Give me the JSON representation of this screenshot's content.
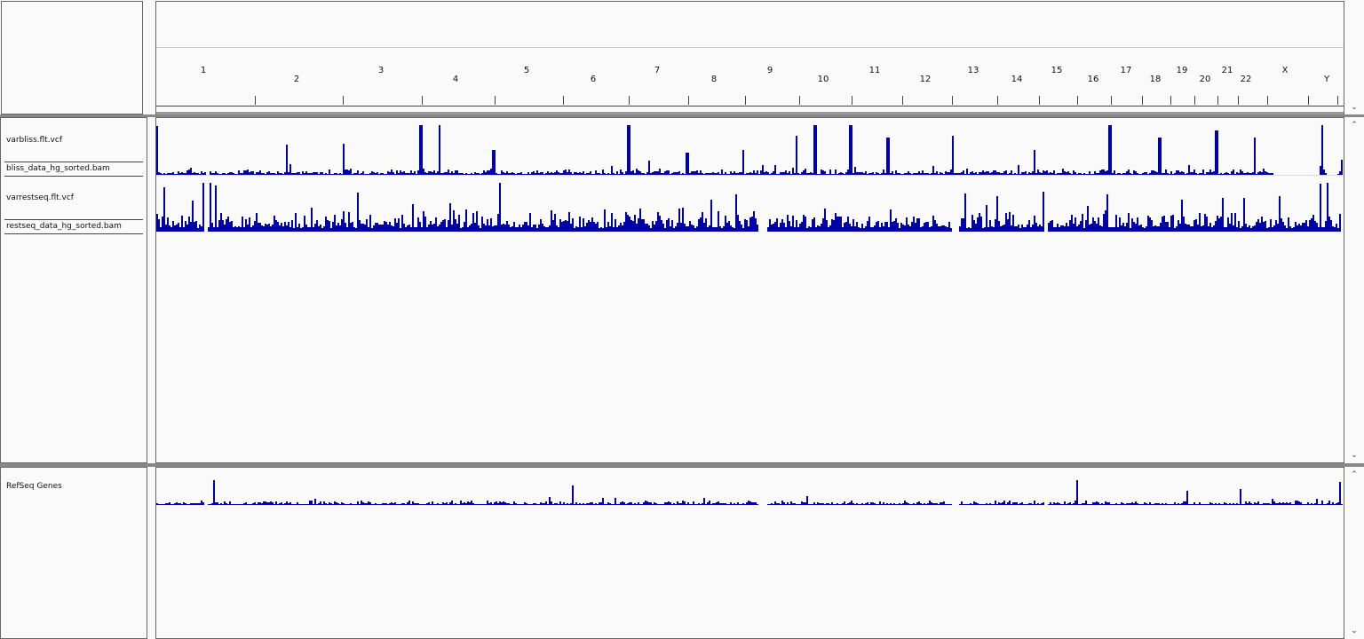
{
  "header": {
    "chromosomes": [
      {
        "name": "1",
        "pos": 229,
        "row": 0
      },
      {
        "name": "2",
        "pos": 334,
        "row": 1
      },
      {
        "name": "3",
        "pos": 429,
        "row": 0
      },
      {
        "name": "4",
        "pos": 513,
        "row": 1
      },
      {
        "name": "5",
        "pos": 593,
        "row": 0
      },
      {
        "name": "6",
        "pos": 668,
        "row": 1
      },
      {
        "name": "7",
        "pos": 740,
        "row": 0
      },
      {
        "name": "8",
        "pos": 804,
        "row": 1
      },
      {
        "name": "9",
        "pos": 867,
        "row": 0
      },
      {
        "name": "10",
        "pos": 927,
        "row": 1
      },
      {
        "name": "11",
        "pos": 985,
        "row": 0
      },
      {
        "name": "12",
        "pos": 1042,
        "row": 1
      },
      {
        "name": "13",
        "pos": 1096,
        "row": 0
      },
      {
        "name": "14",
        "pos": 1145,
        "row": 1
      },
      {
        "name": "15",
        "pos": 1190,
        "row": 0
      },
      {
        "name": "16",
        "pos": 1231,
        "row": 1
      },
      {
        "name": "17",
        "pos": 1268,
        "row": 0
      },
      {
        "name": "18",
        "pos": 1301,
        "row": 1
      },
      {
        "name": "19",
        "pos": 1331,
        "row": 0
      },
      {
        "name": "20",
        "pos": 1357,
        "row": 1
      },
      {
        "name": "21",
        "pos": 1382,
        "row": 0
      },
      {
        "name": "22",
        "pos": 1403,
        "row": 1
      },
      {
        "name": "X",
        "pos": 1447,
        "row": 0
      },
      {
        "name": "Y",
        "pos": 1494,
        "row": 1
      }
    ]
  },
  "tracks": {
    "data_panel": [
      {
        "name": "varbliss.flt.vcf"
      },
      {
        "name": "bliss_data_hg_sorted.bam"
      },
      {
        "name": "varrestseq.flt.vcf"
      },
      {
        "name": "restseq_data_hg_sorted.bam"
      }
    ],
    "feature_panel": [
      {
        "name": "RefSeq Genes"
      }
    ]
  },
  "colors": {
    "bar": "#0000aa",
    "border": "#666666",
    "background": "#fafafa"
  },
  "icons": {
    "scroll_up": "chevron-up-icon",
    "scroll_down": "chevron-down-icon"
  }
}
